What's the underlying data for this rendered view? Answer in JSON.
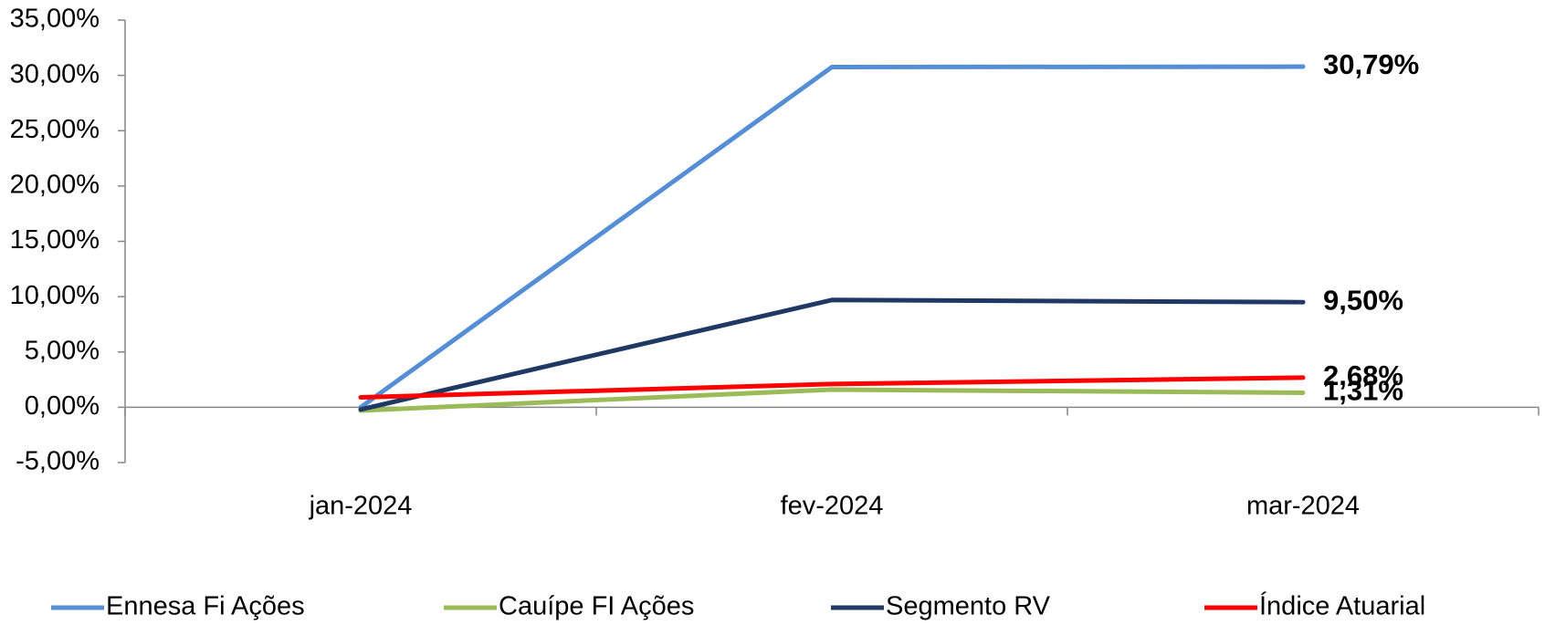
{
  "chart_data": {
    "type": "line",
    "categories": [
      "jan-2024",
      "fev-2024",
      "mar-2024"
    ],
    "series": [
      {
        "name": "Ennesa Fi Ações",
        "color": "#558ed5",
        "label_color": "#1f497d",
        "values": [
          0.0,
          30.75,
          30.79
        ],
        "value_labels": [
          null,
          null,
          "30,79%"
        ]
      },
      {
        "name": "Cauípe FI Ações",
        "color": "#9bbb59",
        "label_color": "#00b050",
        "values": [
          -0.3,
          1.6,
          1.31
        ],
        "value_labels": [
          null,
          null,
          "1,31%"
        ]
      },
      {
        "name": "Segmento RV",
        "color": "#1f3864",
        "label_color": "#17375e",
        "values": [
          -0.2,
          9.7,
          9.5
        ],
        "value_labels": [
          null,
          null,
          "9,50%"
        ]
      },
      {
        "name": "Índice Atuarial",
        "color": "#ff0000",
        "label_color": "#ff0000",
        "values": [
          0.9,
          2.1,
          2.68
        ],
        "value_labels": [
          null,
          null,
          "2,68%"
        ]
      }
    ],
    "ylim": [
      -5,
      35
    ],
    "yticks": [
      {
        "value": -5,
        "label": "-5,00%"
      },
      {
        "value": 0,
        "label": "0,00%"
      },
      {
        "value": 5,
        "label": "5,00%"
      },
      {
        "value": 10,
        "label": "10,00%"
      },
      {
        "value": 15,
        "label": "15,00%"
      },
      {
        "value": 20,
        "label": "20,00%"
      },
      {
        "value": 25,
        "label": "25,00%"
      },
      {
        "value": 30,
        "label": "30,00%"
      },
      {
        "value": 35,
        "label": "35,00%"
      }
    ],
    "grid": false,
    "legend": "bottom"
  }
}
